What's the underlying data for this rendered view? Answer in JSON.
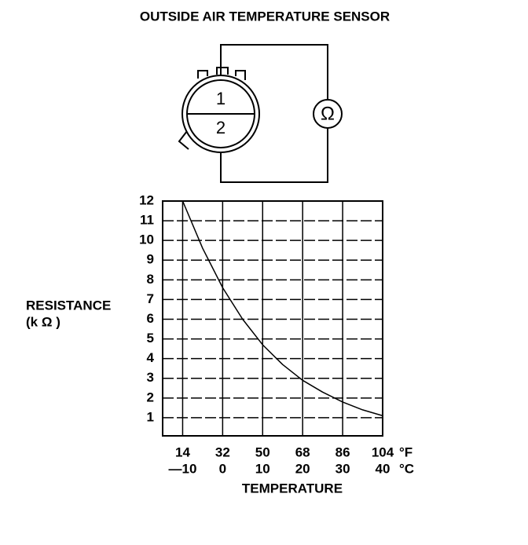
{
  "diagram": {
    "pins": [
      "1",
      "2"
    ],
    "meter": "Ω"
  },
  "chart_data": {
    "type": "line",
    "title": "OUTSIDE AIR TEMPERATURE SENSOR",
    "ylabel": [
      "RESISTANCE",
      "(k Ω )"
    ],
    "xlabel": "TEMPERATURE",
    "x": [
      -10,
      -5,
      0,
      5,
      10,
      15,
      20,
      25,
      30,
      35,
      40
    ],
    "values": [
      12,
      9.6,
      7.6,
      6.0,
      4.7,
      3.7,
      2.9,
      2.3,
      1.8,
      1.4,
      1.1
    ],
    "color": "#000000",
    "xlim": [
      -15,
      40
    ],
    "xticks": [
      {
        "value": -10,
        "label": "—10"
      },
      0,
      10,
      20,
      30,
      40
    ],
    "xunit": "°C",
    "x2lim": [
      5,
      104
    ],
    "x2ticks": [
      14,
      32,
      50,
      68,
      86,
      104
    ],
    "x2unit": "°F",
    "ylim": [
      0,
      12
    ],
    "yticks": [
      1,
      2,
      3,
      4,
      5,
      6,
      7,
      8,
      9,
      10,
      11,
      12
    ],
    "grid": true
  }
}
